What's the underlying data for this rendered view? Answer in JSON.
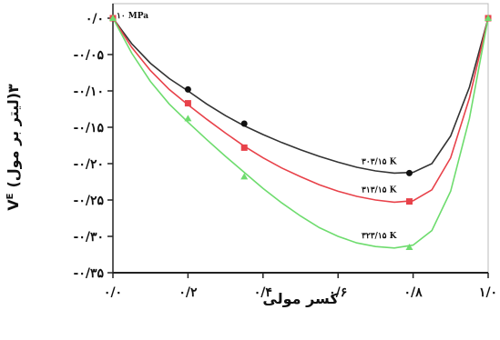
{
  "chart_data": {
    "type": "line",
    "title": "",
    "annotation": "۱۰ MPa",
    "xlabel": "کسر مولی",
    "ylabel": "V",
    "ylabel_sup": "E",
    "ylabel_unit": "(لیتر بر مول)۳",
    "xlim": [
      0,
      1
    ],
    "ylim": [
      -0.35,
      0.02
    ],
    "x_ticks": [
      {
        "value": 0.0,
        "label": "۰/۰"
      },
      {
        "value": 0.2,
        "label": "۰/۲"
      },
      {
        "value": 0.4,
        "label": "۰/۴"
      },
      {
        "value": 0.6,
        "label": "۰/۶"
      },
      {
        "value": 0.8,
        "label": "۰/۸"
      },
      {
        "value": 1.0,
        "label": "۱/۰"
      }
    ],
    "y_ticks": [
      {
        "value": 0.0,
        "label": "۰/۰"
      },
      {
        "value": -0.05,
        "label": "-۰/۰۵"
      },
      {
        "value": -0.1,
        "label": "-۰/۱۰"
      },
      {
        "value": -0.15,
        "label": "-۰/۱۵"
      },
      {
        "value": -0.2,
        "label": "-۰/۲۰"
      },
      {
        "value": -0.25,
        "label": "-۰/۲۵"
      },
      {
        "value": -0.3,
        "label": "-۰/۳۰"
      },
      {
        "value": -0.35,
        "label": "-۰/۳۵"
      }
    ],
    "grid": false,
    "series": [
      {
        "name": "۳۰۳/۱۵ K",
        "color": "#333333",
        "points": [
          [
            0.0,
            0.0
          ],
          [
            0.2,
            -0.098
          ],
          [
            0.35,
            -0.145
          ],
          [
            0.79,
            -0.213
          ],
          [
            1.0,
            0.0
          ]
        ],
        "curve": [
          [
            0.0,
            0.0
          ],
          [
            0.05,
            -0.035
          ],
          [
            0.1,
            -0.062
          ],
          [
            0.15,
            -0.083
          ],
          [
            0.2,
            -0.1
          ],
          [
            0.25,
            -0.118
          ],
          [
            0.3,
            -0.134
          ],
          [
            0.35,
            -0.148
          ],
          [
            0.4,
            -0.16
          ],
          [
            0.45,
            -0.171
          ],
          [
            0.5,
            -0.181
          ],
          [
            0.55,
            -0.19
          ],
          [
            0.6,
            -0.198
          ],
          [
            0.65,
            -0.205
          ],
          [
            0.7,
            -0.21
          ],
          [
            0.75,
            -0.213
          ],
          [
            0.8,
            -0.212
          ],
          [
            0.85,
            -0.2
          ],
          [
            0.9,
            -0.162
          ],
          [
            0.95,
            -0.095
          ],
          [
            1.0,
            0.0
          ]
        ]
      },
      {
        "name": "۳۱۳/۱۵ K",
        "color": "#e8424a",
        "points": [
          [
            0.0,
            0.0
          ],
          [
            0.2,
            -0.117
          ],
          [
            0.35,
            -0.178
          ],
          [
            0.79,
            -0.252
          ],
          [
            1.0,
            0.0
          ]
        ],
        "curve": [
          [
            0.0,
            0.0
          ],
          [
            0.05,
            -0.04
          ],
          [
            0.1,
            -0.072
          ],
          [
            0.15,
            -0.098
          ],
          [
            0.2,
            -0.119
          ],
          [
            0.25,
            -0.139
          ],
          [
            0.3,
            -0.158
          ],
          [
            0.35,
            -0.176
          ],
          [
            0.4,
            -0.192
          ],
          [
            0.45,
            -0.206
          ],
          [
            0.5,
            -0.218
          ],
          [
            0.55,
            -0.229
          ],
          [
            0.6,
            -0.238
          ],
          [
            0.65,
            -0.245
          ],
          [
            0.7,
            -0.25
          ],
          [
            0.75,
            -0.253
          ],
          [
            0.8,
            -0.251
          ],
          [
            0.85,
            -0.236
          ],
          [
            0.9,
            -0.192
          ],
          [
            0.95,
            -0.11
          ],
          [
            1.0,
            0.0
          ]
        ]
      },
      {
        "name": "۳۲۳/۱۵ K",
        "color": "#6edc6e",
        "points": [
          [
            0.0,
            0.0
          ],
          [
            0.2,
            -0.138
          ],
          [
            0.35,
            -0.218
          ],
          [
            0.79,
            -0.315
          ],
          [
            1.0,
            0.0
          ]
        ],
        "curve": [
          [
            0.0,
            0.0
          ],
          [
            0.05,
            -0.048
          ],
          [
            0.1,
            -0.087
          ],
          [
            0.15,
            -0.118
          ],
          [
            0.2,
            -0.143
          ],
          [
            0.25,
            -0.167
          ],
          [
            0.3,
            -0.19
          ],
          [
            0.35,
            -0.212
          ],
          [
            0.4,
            -0.234
          ],
          [
            0.45,
            -0.254
          ],
          [
            0.5,
            -0.272
          ],
          [
            0.55,
            -0.288
          ],
          [
            0.6,
            -0.3
          ],
          [
            0.65,
            -0.309
          ],
          [
            0.7,
            -0.314
          ],
          [
            0.75,
            -0.316
          ],
          [
            0.8,
            -0.312
          ],
          [
            0.85,
            -0.292
          ],
          [
            0.9,
            -0.238
          ],
          [
            0.95,
            -0.138
          ],
          [
            1.0,
            0.0
          ]
        ]
      }
    ]
  },
  "colors": {
    "axis": "#222222",
    "frame": "#bbbbbb"
  }
}
